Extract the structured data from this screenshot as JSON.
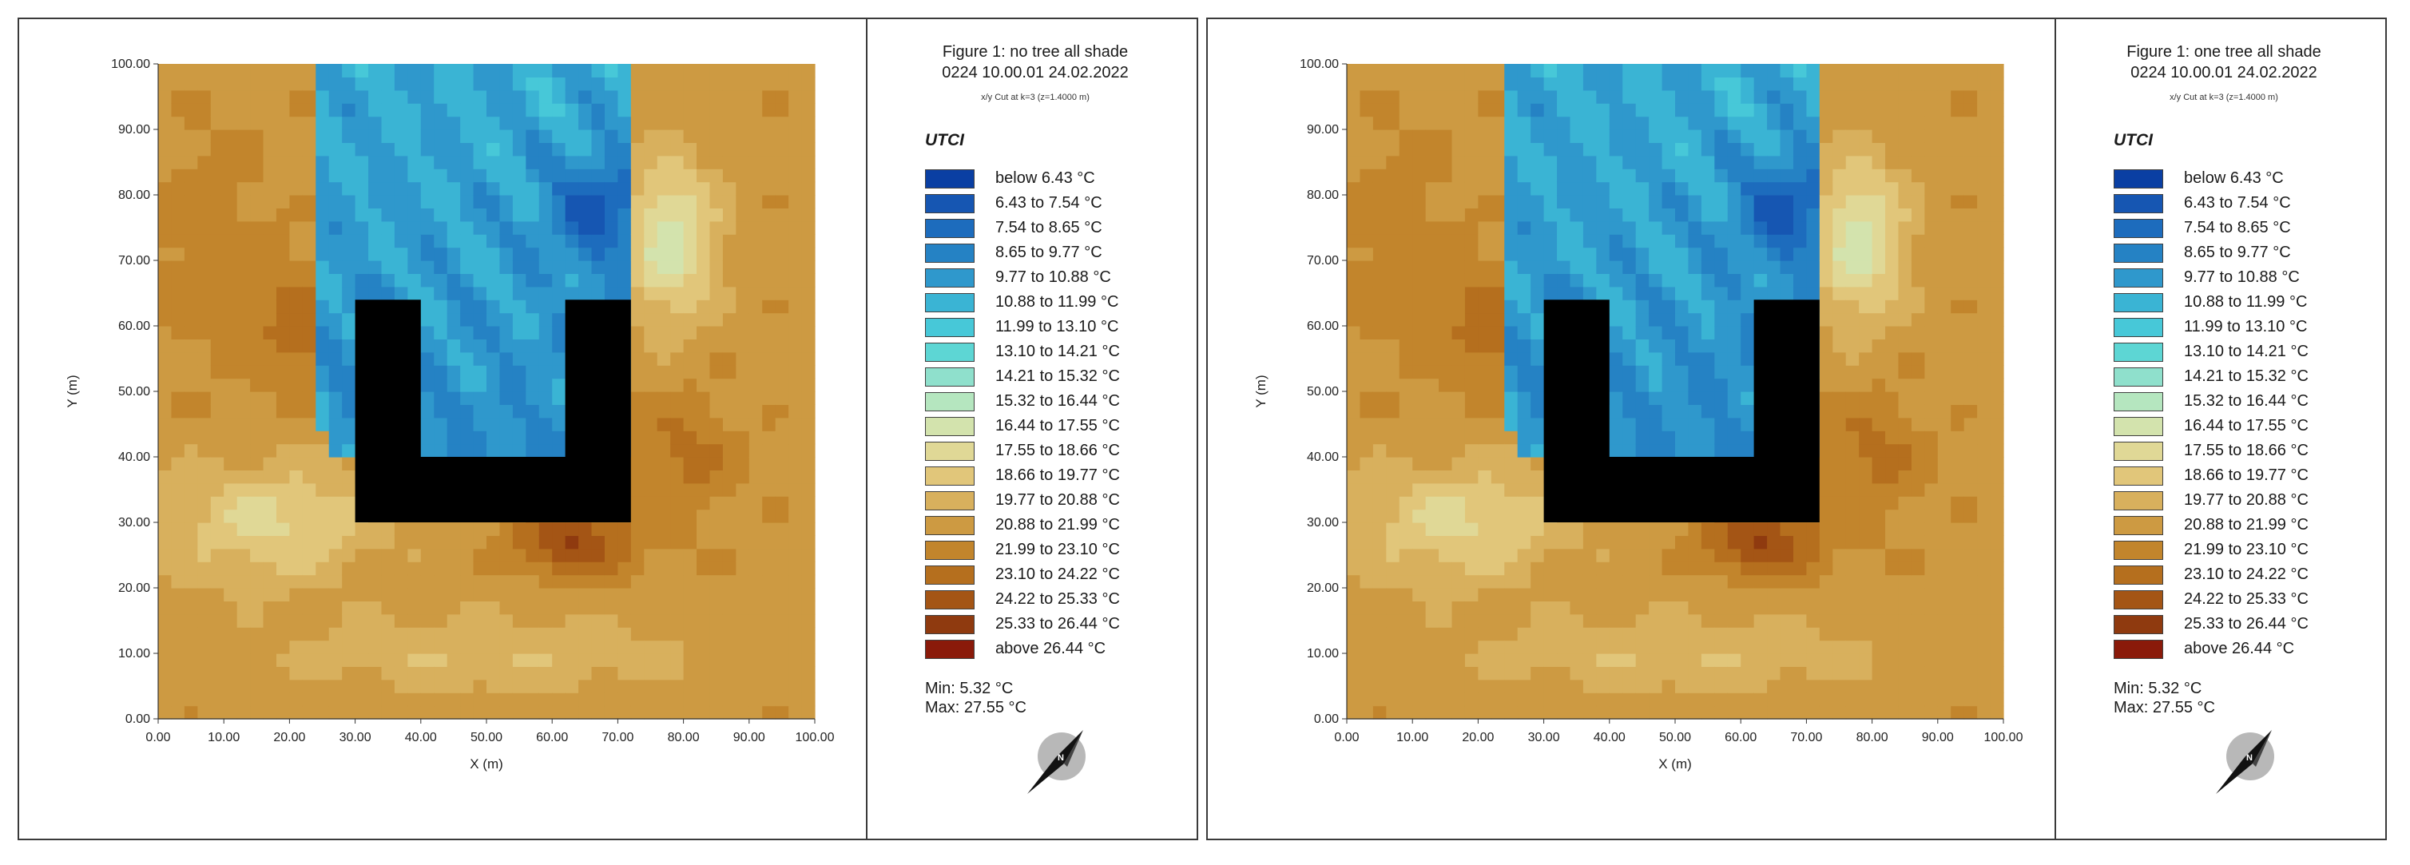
{
  "panels": [
    {
      "id": "left",
      "title_line1": "Figure 1: no tree all shade",
      "title_line2": "0224 10.00.01 24.02.2022",
      "subtitle": "x/y Cut at k=3 (z=1.4000 m)",
      "min_text": "Min: 5.32 °C",
      "max_text": "Max: 27.55 °C"
    },
    {
      "id": "right",
      "title_line1": "Figure 1: one tree all shade",
      "title_line2": "0224 10.00.01 24.02.2022",
      "subtitle": "x/y Cut at k=3 (z=1.4000 m)",
      "min_text": "Min: 5.32 °C",
      "max_text": "Max: 27.55 °C"
    }
  ],
  "legend": {
    "title": "UTCI",
    "items": [
      {
        "label": "below 6.43 °C",
        "color": "#0a3fa3"
      },
      {
        "label": "6.43 to 7.54 °C",
        "color": "#1656b2"
      },
      {
        "label": "7.54 to 8.65 °C",
        "color": "#1d6cbd"
      },
      {
        "label": "8.65 to 9.77 °C",
        "color": "#2582c4"
      },
      {
        "label": "9.77 to 10.88 °C",
        "color": "#2f98cc"
      },
      {
        "label": "10.88 to 11.99 °C",
        "color": "#3ab4d4"
      },
      {
        "label": "11.99 to 13.10 °C",
        "color": "#47c8d8"
      },
      {
        "label": "13.10 to 14.21 °C",
        "color": "#5dd6d4"
      },
      {
        "label": "14.21 to 15.32 °C",
        "color": "#8fe0cc"
      },
      {
        "label": "15.32 to 16.44 °C",
        "color": "#b5e6bf"
      },
      {
        "label": "16.44 to 17.55 °C",
        "color": "#d3e3ad"
      },
      {
        "label": "17.55 to 18.66 °C",
        "color": "#e0d896"
      },
      {
        "label": "18.66 to 19.77 °C",
        "color": "#e1c67a"
      },
      {
        "label": "19.77 to 20.88 °C",
        "color": "#d8b05d"
      },
      {
        "label": "20.88 to 21.99 °C",
        "color": "#cd9a42"
      },
      {
        "label": "21.99 to 23.10 °C",
        "color": "#c2852c"
      },
      {
        "label": "23.10 to 24.22 °C",
        "color": "#b56f1e"
      },
      {
        "label": "24.22 to 25.33 °C",
        "color": "#a45515"
      },
      {
        "label": "25.33 to 26.44 °C",
        "color": "#8f3a0f"
      },
      {
        "label": "above 26.44 °C",
        "color": "#8a1a0a"
      }
    ]
  },
  "chart_data": [
    {
      "type": "heatmap",
      "title": "Figure 1: no tree all shade",
      "variable": "UTCI",
      "xlabel": "X (m)",
      "ylabel": "Y (m)",
      "xlim": [
        0,
        100
      ],
      "ylim": [
        0,
        100
      ],
      "xticks": [
        "0.00",
        "10.00",
        "20.00",
        "30.00",
        "40.00",
        "50.00",
        "60.00",
        "70.00",
        "80.00",
        "90.00",
        "100.00"
      ],
      "yticks": [
        "0.00",
        "10.00",
        "20.00",
        "30.00",
        "40.00",
        "50.00",
        "60.00",
        "70.00",
        "80.00",
        "90.00",
        "100.00"
      ],
      "min": 5.32,
      "max": 27.55,
      "building_polygon": [
        [
          30,
          30
        ],
        [
          72,
          30
        ],
        [
          72,
          64
        ],
        [
          62,
          64
        ],
        [
          62,
          40
        ],
        [
          40,
          40
        ],
        [
          40,
          64
        ],
        [
          30,
          64
        ]
      ]
    },
    {
      "type": "heatmap",
      "title": "Figure 1: one tree all shade",
      "variable": "UTCI",
      "xlabel": "X (m)",
      "ylabel": "Y (m)",
      "xlim": [
        0,
        100
      ],
      "ylim": [
        0,
        100
      ],
      "xticks": [
        "0.00",
        "10.00",
        "20.00",
        "30.00",
        "40.00",
        "50.00",
        "60.00",
        "70.00",
        "80.00",
        "90.00",
        "100.00"
      ],
      "yticks": [
        "0.00",
        "10.00",
        "20.00",
        "30.00",
        "40.00",
        "50.00",
        "60.00",
        "70.00",
        "80.00",
        "90.00",
        "100.00"
      ],
      "min": 5.32,
      "max": 27.55,
      "building_polygon": [
        [
          30,
          30
        ],
        [
          72,
          30
        ],
        [
          72,
          64
        ],
        [
          62,
          64
        ],
        [
          62,
          40
        ],
        [
          40,
          40
        ],
        [
          40,
          64
        ],
        [
          30,
          64
        ]
      ]
    }
  ]
}
